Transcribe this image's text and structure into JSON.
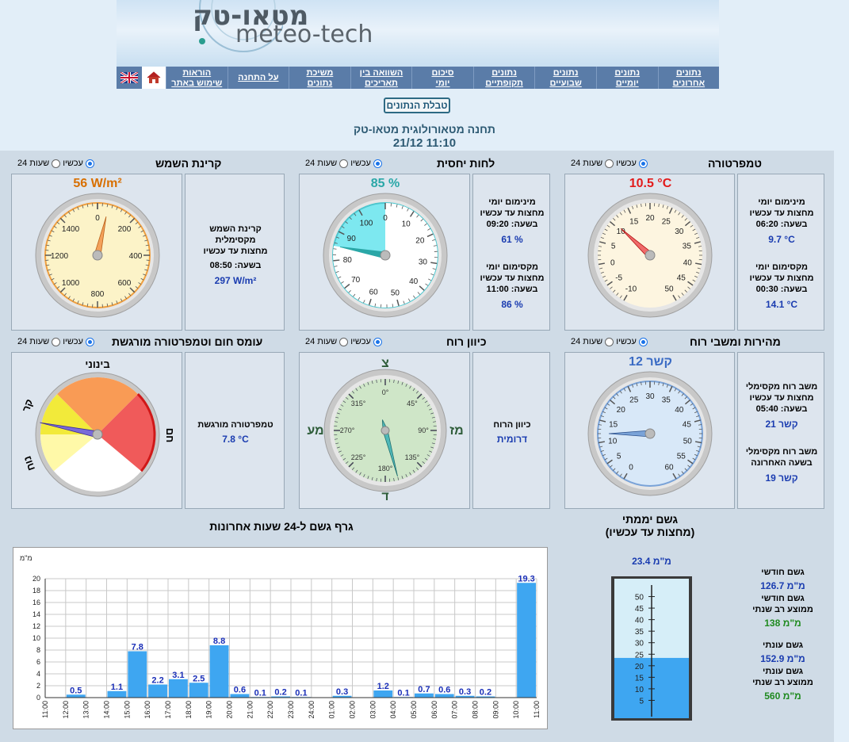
{
  "header": {
    "logo_he": "מטאו-טק",
    "logo_en": "meteo-tech",
    "nav": [
      {
        "label": "נתונים\nאחרונים"
      },
      {
        "label": "נתונים\nיומיים"
      },
      {
        "label": "נתונים\nשבועיים"
      },
      {
        "label": "נתונים\nתקופתיים"
      },
      {
        "label": "סיכום\nיומי"
      },
      {
        "label": "השוואה בין\nתאריכים"
      },
      {
        "label": "משיכת\nנתונים"
      },
      {
        "label": "על התחנה"
      },
      {
        "label": "הוראות\nשימוש באתר"
      }
    ],
    "home_icon": "home-icon",
    "flag_icon": "uk-flag-icon"
  },
  "table_button": "טבלת הנתונים",
  "station": {
    "title": "תחנה מטאורולוגית מטאו-טק",
    "time": "21/12 11:10"
  },
  "radio_labels": {
    "now": "עכשיו",
    "h24": "24 שעות"
  },
  "panels": {
    "temperature": {
      "title": "טמפרטורה",
      "value": "10.5 °C",
      "value_num": 10.5,
      "min_label": "מינימום יומי\nמחצות עד עכשיו",
      "min_time": "בשעה: 06:20",
      "min_val": "9.7 °C",
      "max_label": "מקסימום יומי\nמחצות עד עכשיו",
      "max_time": "בשעה: 00:30",
      "max_val": "14.1 °C",
      "ticks": [
        "-10",
        "-5",
        "0",
        "5",
        "10",
        "15",
        "20",
        "25",
        "30",
        "35",
        "40",
        "45",
        "50"
      ],
      "color": "#e21b1b"
    },
    "humidity": {
      "title": "לחות יחסית",
      "value": "85 %",
      "value_num": 85,
      "min_label": "מינימום יומי\nמחצות עד עכשיו",
      "min_time": "בשעה: 09:20",
      "min_val": "61 %",
      "max_label": "מקסימום יומי\nמחצות עד עכשיו",
      "max_time": "בשעה: 11:00",
      "max_val": "86 %",
      "ticks": [
        "0",
        "10",
        "20",
        "30",
        "40",
        "50",
        "60",
        "70",
        "80",
        "90",
        "100"
      ],
      "color": "#2aa7a7"
    },
    "solar": {
      "title": "קרינת השמש",
      "value": "56 W/m²",
      "value_num": 56,
      "stat_label": "קרינת השמש\nמקסימלית\nמחצות עד עכשיו",
      "stat_time": "בשעה: 08:50",
      "stat_val": "297 W/m²",
      "ticks": [
        "0",
        "200",
        "400",
        "600",
        "800",
        "1000",
        "1200",
        "1400"
      ],
      "color": "#d86f00"
    },
    "wind_speed": {
      "title": "מהירות ומשבי רוח",
      "value": "12 קשר",
      "value_num": 12,
      "gust_label": "משב רוח מקסימלי\nמחצות עד עכשיו",
      "gust_time": "בשעה: 05:40",
      "gust_val": "21 קשר",
      "lasthour_label": "משב רוח מקסימלי\nבשעה האחרונה",
      "lasthour_val": "19 קשר",
      "ticks": [
        "0",
        "5",
        "10",
        "15",
        "20",
        "25",
        "30",
        "35",
        "40",
        "45",
        "50",
        "55",
        "60"
      ],
      "color": "#3a6bc4"
    },
    "wind_dir": {
      "title": "כיוון רוח",
      "label": "כיוון הרוח",
      "value": "דרומית",
      "degrees": 165,
      "N": "צ",
      "S": "ד",
      "E": "מז",
      "W": "מע",
      "ticks": [
        "0°",
        "45°",
        "90°",
        "135°",
        "180°",
        "225°",
        "270°",
        "315°"
      ]
    },
    "heat": {
      "title": "עומס חום וטמפרטורה מורגשת",
      "label": "טמפרטורה מורגשת",
      "value": "7.8 °C",
      "value_num": 7.8,
      "zone_labels": {
        "moderate": "בינוני",
        "hot": "חם",
        "cold": "קר",
        "cool": "נוח"
      }
    }
  },
  "rain": {
    "title": "גשם יממתי",
    "subtitle": "(מחצות עד עכשיו)",
    "value": "23.4 מ\"מ",
    "value_num": 23.4,
    "ticks": [
      "5",
      "10",
      "15",
      "20",
      "25",
      "30",
      "35",
      "40",
      "45",
      "50"
    ],
    "monthly_label": "גשם חודשי",
    "monthly_val": "126.7 מ\"מ",
    "monthly_avg_label": "גשם חודשי\nממוצע רב שנתי",
    "monthly_avg_val": "138 מ\"מ",
    "season_label": "גשם עונתי",
    "season_val": "152.9 מ\"מ",
    "season_avg_label": "גשם עונתי\nממוצע רב שנתי",
    "season_avg_val": "560 מ\"מ"
  },
  "chart_data": {
    "type": "bar",
    "title": "גרף גשם ל-24 שעות אחרונות",
    "ylabel": "מ\"מ",
    "ylim": [
      0,
      20
    ],
    "yticks": [
      0,
      2,
      4,
      6,
      8,
      10,
      12,
      14,
      16,
      18,
      20
    ],
    "grid": true,
    "categories": [
      "11:00",
      "12:00",
      "13:00",
      "14:00",
      "15:00",
      "16:00",
      "17:00",
      "18:00",
      "19:00",
      "20:00",
      "21:00",
      "22:00",
      "23:00",
      "24:00",
      "01:00",
      "02:00",
      "03:00",
      "04:00",
      "05:00",
      "06:00",
      "07:00",
      "08:00",
      "09:00",
      "10:00",
      "11:00"
    ],
    "values": [
      null,
      0.5,
      null,
      1.1,
      7.8,
      2.2,
      3.1,
      2.5,
      8.8,
      0.6,
      0.1,
      0.2,
      0.1,
      null,
      0.3,
      null,
      1.2,
      0.1,
      0.7,
      0.6,
      0.3,
      0.2,
      null,
      19.3
    ],
    "labels": [
      "",
      "0.5",
      "",
      "1.1",
      "7.8",
      "2.2",
      "3.1",
      "2.5",
      "8.8",
      "0.6",
      "0.1",
      "0.2",
      "0.1",
      "",
      "0.3",
      "",
      "1.2",
      "0.1",
      "0.7",
      "0.6",
      "0.3",
      "0.2",
      "",
      "19.3"
    ],
    "bar_color": "#3ea6f1"
  }
}
